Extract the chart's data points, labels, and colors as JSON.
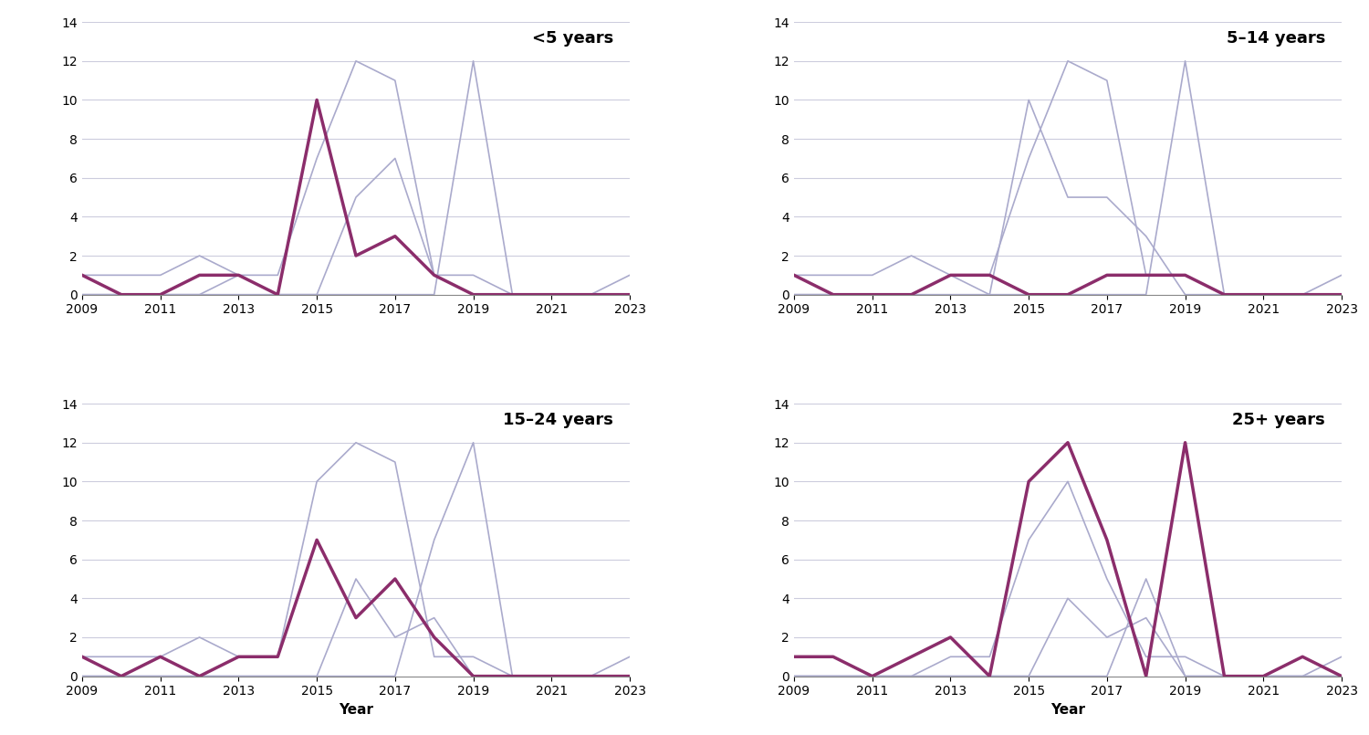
{
  "years": [
    2009,
    2010,
    2011,
    2012,
    2013,
    2014,
    2015,
    2016,
    2017,
    2018,
    2019,
    2020,
    2021,
    2022,
    2023
  ],
  "subplots": [
    {
      "title": "<5 years",
      "purple_line": [
        1,
        0,
        0,
        1,
        1,
        0,
        10,
        2,
        3,
        1,
        0,
        0,
        0,
        0,
        0
      ],
      "grey_lines": [
        [
          1,
          1,
          1,
          2,
          1,
          1,
          7,
          12,
          11,
          1,
          1,
          0,
          0,
          0,
          0
        ],
        [
          0,
          0,
          0,
          0,
          1,
          0,
          0,
          5,
          7,
          1,
          0,
          0,
          0,
          0,
          1
        ],
        [
          0,
          0,
          0,
          0,
          0,
          0,
          0,
          0,
          0,
          0,
          12,
          0,
          0,
          0,
          0
        ]
      ]
    },
    {
      "title": "5–14 years",
      "purple_line": [
        1,
        0,
        0,
        0,
        1,
        1,
        0,
        0,
        1,
        1,
        1,
        0,
        0,
        0,
        0
      ],
      "grey_lines": [
        [
          1,
          1,
          1,
          2,
          1,
          1,
          7,
          12,
          11,
          1,
          1,
          0,
          0,
          0,
          0
        ],
        [
          0,
          0,
          0,
          0,
          1,
          0,
          10,
          5,
          5,
          3,
          0,
          0,
          0,
          0,
          1
        ],
        [
          0,
          0,
          0,
          0,
          0,
          0,
          0,
          0,
          0,
          0,
          12,
          0,
          0,
          0,
          0
        ]
      ]
    },
    {
      "title": "15–24 years",
      "purple_line": [
        1,
        0,
        1,
        0,
        1,
        1,
        7,
        3,
        5,
        2,
        0,
        0,
        0,
        0,
        0
      ],
      "grey_lines": [
        [
          1,
          1,
          1,
          2,
          1,
          1,
          10,
          12,
          11,
          1,
          1,
          0,
          0,
          0,
          0
        ],
        [
          0,
          0,
          0,
          0,
          0,
          0,
          0,
          5,
          2,
          3,
          0,
          0,
          0,
          0,
          1
        ],
        [
          0,
          0,
          0,
          0,
          0,
          0,
          0,
          0,
          0,
          7,
          12,
          0,
          0,
          0,
          0
        ]
      ]
    },
    {
      "title": "25+ years",
      "purple_line": [
        1,
        1,
        0,
        1,
        2,
        0,
        10,
        12,
        7,
        0,
        12,
        0,
        0,
        1,
        0
      ],
      "grey_lines": [
        [
          0,
          0,
          0,
          0,
          1,
          1,
          7,
          10,
          5,
          1,
          1,
          0,
          0,
          0,
          0
        ],
        [
          0,
          0,
          0,
          0,
          0,
          0,
          0,
          4,
          2,
          3,
          0,
          0,
          0,
          0,
          1
        ],
        [
          0,
          0,
          0,
          0,
          0,
          0,
          0,
          0,
          0,
          5,
          0,
          0,
          0,
          0,
          0
        ]
      ]
    }
  ],
  "purple_color": "#8B2D6B",
  "grey_color": "#AAAACC",
  "ylim": [
    0,
    14
  ],
  "yticks": [
    0,
    2,
    4,
    6,
    8,
    10,
    12,
    14
  ],
  "xticks": [
    2009,
    2011,
    2013,
    2015,
    2017,
    2019,
    2021,
    2023
  ],
  "xlabel": "Year",
  "background_color": "#ffffff",
  "grid_color": "#CCCCDD",
  "title_fontsize": 13,
  "axis_fontsize": 11,
  "tick_fontsize": 10,
  "purple_linewidth": 2.5,
  "grey_linewidth": 1.2
}
